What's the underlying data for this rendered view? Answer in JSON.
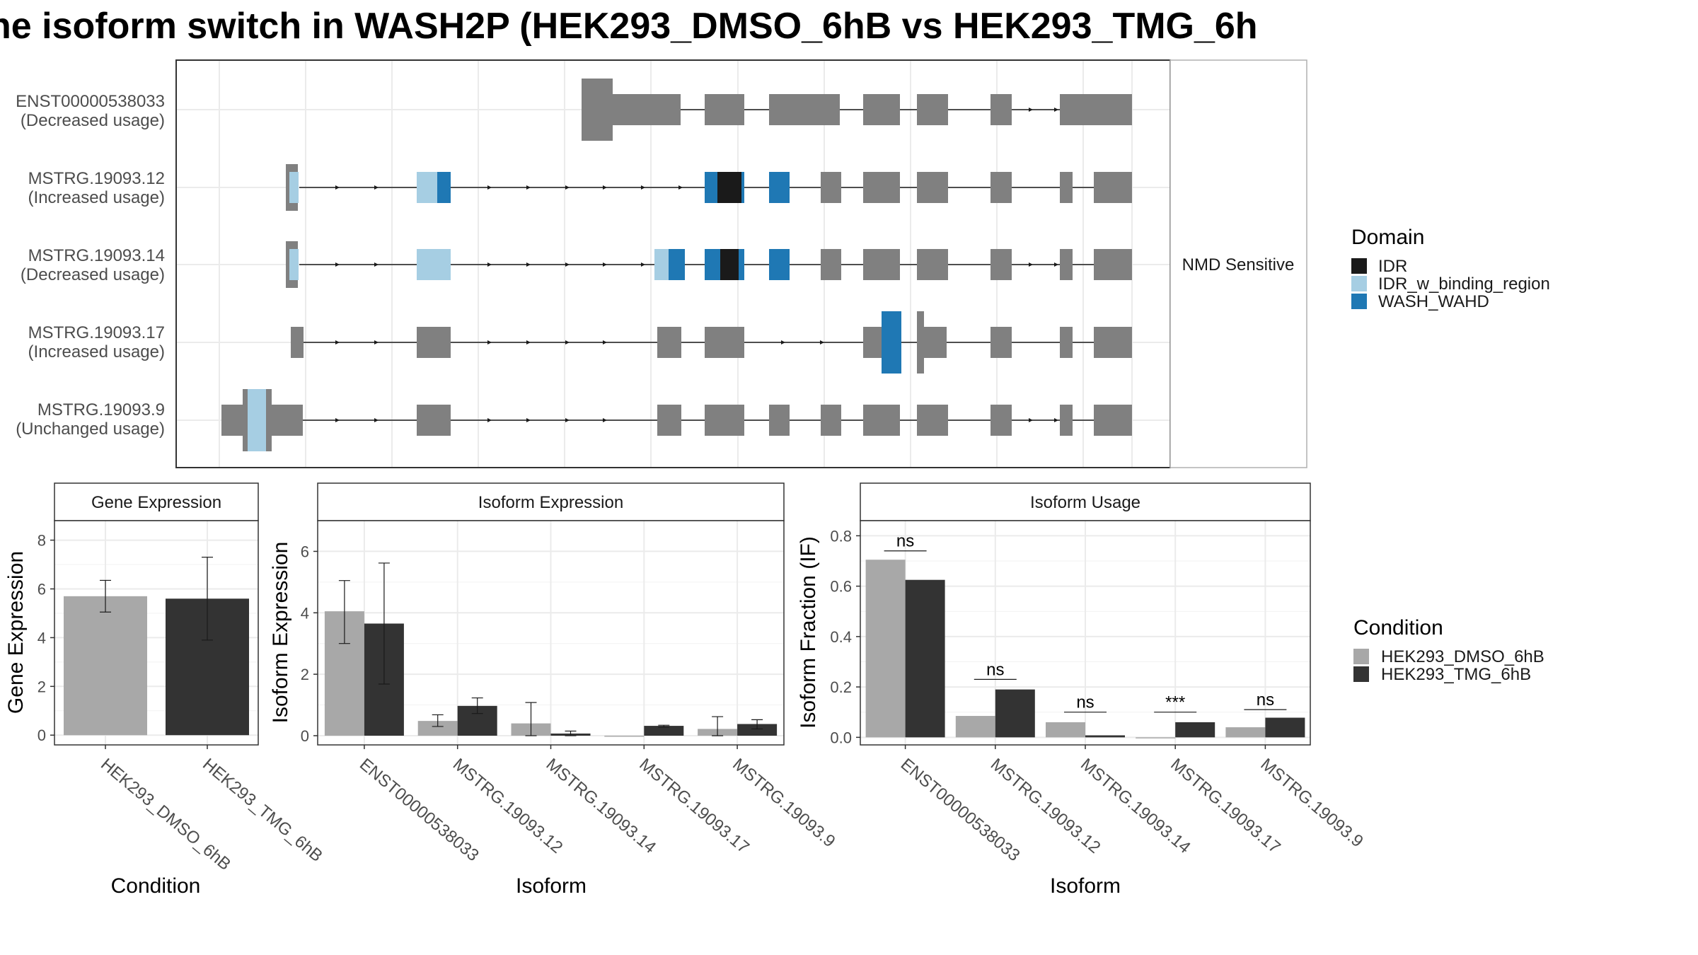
{
  "title": "ne isoform switch in WASH2P (HEK293_DMSO_6hB vs HEK293_TMG_6h",
  "colors": {
    "exon": "#808080",
    "IDR": "#1a1a1a",
    "IDR_w_binding_region": "#a6cee3",
    "WASH_WAHD": "#1f78b4",
    "HEK293_DMSO_6hB": "#a8a8a8",
    "HEK293_TMG_6hB": "#333333"
  },
  "structure": {
    "strip_label": "NMD Sensitive",
    "isoforms": [
      {
        "id": "ENST00000538033",
        "usage": "(Decreased usage)"
      },
      {
        "id": "MSTRG.19093.12",
        "usage": "(Increased usage)"
      },
      {
        "id": "MSTRG.19093.14",
        "usage": "(Decreased usage)"
      },
      {
        "id": "MSTRG.19093.17",
        "usage": "(Increased usage)"
      },
      {
        "id": "MSTRG.19093.9",
        "usage": "(Unchanged usage)"
      }
    ]
  },
  "legend_domain": {
    "title": "Domain",
    "items": [
      {
        "label": "IDR",
        "color": "#1a1a1a"
      },
      {
        "label": "IDR_w_binding_region",
        "color": "#a6cee3"
      },
      {
        "label": "WASH_WAHD",
        "color": "#1f78b4"
      }
    ]
  },
  "legend_condition": {
    "title": "Condition",
    "items": [
      {
        "label": "HEK293_DMSO_6hB",
        "color": "#a8a8a8"
      },
      {
        "label": "HEK293_TMG_6hB",
        "color": "#333333"
      }
    ]
  },
  "chart_data": [
    {
      "type": "bar",
      "title": "Gene Expression",
      "xlabel": "Condition",
      "ylabel": "Gene Expression",
      "ylim": [
        -0.4,
        8.8
      ],
      "yticks": [
        0,
        2,
        4,
        6,
        8
      ],
      "categories": [
        "HEK293_DMSO_6hB",
        "HEK293_TMG_6hB"
      ],
      "values": [
        5.7,
        5.6
      ],
      "error": [
        [
          5.05,
          6.35
        ],
        [
          3.9,
          7.3
        ]
      ]
    },
    {
      "type": "bar",
      "title": "Isoform Expression",
      "xlabel": "Isoform",
      "ylabel": "Isoform Expression",
      "ylim": [
        -0.3,
        7.0
      ],
      "yticks": [
        0,
        2,
        4,
        6
      ],
      "categories": [
        "ENST00000538033",
        "MSTRG.19093.12",
        "MSTRG.19093.14",
        "MSTRG.19093.17",
        "MSTRG.19093.9"
      ],
      "series": [
        {
          "name": "HEK293_DMSO_6hB",
          "values": [
            4.05,
            0.48,
            0.4,
            0.0,
            0.22
          ],
          "error": [
            [
              3.0,
              5.05
            ],
            [
              0.3,
              0.68
            ],
            [
              0.0,
              1.08
            ],
            null,
            [
              0.0,
              0.62
            ]
          ]
        },
        {
          "name": "HEK293_TMG_6hB",
          "values": [
            3.65,
            0.97,
            0.07,
            0.32,
            0.38
          ],
          "error": [
            [
              1.68,
              5.62
            ],
            [
              0.72,
              1.23
            ],
            [
              0.0,
              0.15
            ],
            [
              0.28,
              0.34
            ],
            [
              0.22,
              0.52
            ]
          ]
        }
      ]
    },
    {
      "type": "bar",
      "title": "Isoform Usage",
      "xlabel": "Isoform",
      "ylabel": "Isoform Fraction (IF)",
      "ylim": [
        -0.03,
        0.86
      ],
      "yticks": [
        0.0,
        0.2,
        0.4,
        0.6,
        0.8
      ],
      "ytick_labels": [
        "0.0",
        "0.2",
        "0.4",
        "0.6",
        "0.8"
      ],
      "categories": [
        "ENST00000538033",
        "MSTRG.19093.12",
        "MSTRG.19093.14",
        "MSTRG.19093.17",
        "MSTRG.19093.9"
      ],
      "series": [
        {
          "name": "HEK293_DMSO_6hB",
          "values": [
            0.705,
            0.085,
            0.06,
            0.0,
            0.04
          ]
        },
        {
          "name": "HEK293_TMG_6hB",
          "values": [
            0.625,
            0.19,
            0.008,
            0.06,
            0.078
          ]
        }
      ],
      "significance": [
        "ns",
        "ns",
        "ns",
        "***",
        "ns"
      ],
      "sig_y": [
        0.74,
        0.23,
        0.1,
        0.1,
        0.11
      ]
    }
  ]
}
